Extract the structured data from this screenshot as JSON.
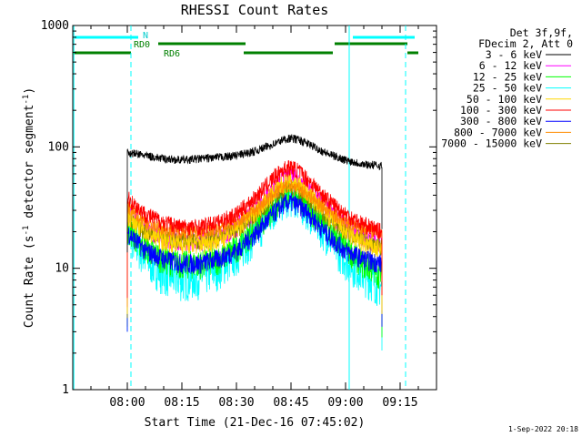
{
  "chart_data": {
    "type": "line",
    "title": "RHESSI Count Rates",
    "xlabel": "Start Time (21-Dec-16 07:45:02)",
    "ylabel": "Count Rate (s⁻¹ detector segment⁻¹)",
    "ylabel_main": "Count Rate (s",
    "ylabel_sup1": "-1",
    "ylabel_mid": " detector segment",
    "ylabel_sup2": "-1",
    "ylabel_end": ")",
    "yscale": "log",
    "ylim": [
      1,
      1000
    ],
    "xlim_minutes": [
      0,
      100
    ],
    "x_ticks": [
      "08:00",
      "08:15",
      "08:30",
      "08:45",
      "09:00",
      "09:15"
    ],
    "x_tick_minutes": [
      15,
      30,
      45,
      60,
      75,
      90
    ],
    "y_ticks": [
      "1",
      "10",
      "100",
      "1000"
    ],
    "y_tick_values": [
      1,
      10,
      100,
      1000
    ],
    "legend_header": [
      "Det 3f,9f,",
      "FDecim 2, Att 0"
    ],
    "legend_placement": "right",
    "series": [
      {
        "name": "3 - 6 keV",
        "color": "#000000",
        "x": [
          15,
          20,
          25,
          30,
          35,
          40,
          45,
          50,
          55,
          58,
          60,
          62,
          65,
          70,
          75,
          80,
          85
        ],
        "values": [
          90,
          85,
          80,
          78,
          80,
          82,
          85,
          92,
          105,
          115,
          118,
          115,
          105,
          88,
          78,
          72,
          70
        ]
      },
      {
        "name": "6 - 12 keV",
        "color": "#ff00ff",
        "x": [
          15,
          20,
          25,
          30,
          35,
          40,
          45,
          50,
          55,
          58,
          60,
          62,
          65,
          70,
          75,
          80,
          85
        ],
        "values": [
          30,
          22,
          18,
          17,
          17,
          18,
          22,
          30,
          45,
          55,
          57,
          54,
          45,
          30,
          22,
          18,
          15
        ]
      },
      {
        "name": "12 - 25 keV",
        "color": "#00ff00",
        "x": [
          15,
          20,
          25,
          30,
          35,
          40,
          45,
          50,
          55,
          58,
          60,
          62,
          65,
          70,
          75,
          80,
          85
        ],
        "values": [
          22,
          15,
          12,
          11,
          11,
          12,
          15,
          21,
          32,
          40,
          42,
          40,
          32,
          21,
          15,
          11,
          9
        ]
      },
      {
        "name": "25 - 50 keV",
        "color": "#00ffff",
        "x": [
          15,
          20,
          25,
          30,
          35,
          40,
          45,
          50,
          55,
          58,
          60,
          62,
          65,
          70,
          75,
          80,
          85
        ],
        "values": [
          20,
          12,
          9,
          8,
          8.5,
          10,
          13,
          19,
          30,
          38,
          40,
          37,
          30,
          19,
          12,
          9,
          7
        ]
      },
      {
        "name": "50 - 100 keV",
        "color": "#ffd700",
        "x": [
          15,
          20,
          25,
          30,
          35,
          40,
          45,
          50,
          55,
          58,
          60,
          62,
          65,
          70,
          75,
          80,
          85
        ],
        "values": [
          28,
          20,
          17,
          16,
          16,
          17,
          21,
          29,
          42,
          50,
          52,
          49,
          41,
          28,
          20,
          16,
          14
        ]
      },
      {
        "name": "100 - 300 keV",
        "color": "#ff0000",
        "x": [
          15,
          20,
          25,
          30,
          35,
          40,
          45,
          50,
          55,
          58,
          60,
          62,
          65,
          70,
          75,
          80,
          85
        ],
        "values": [
          38,
          28,
          24,
          22,
          22,
          24,
          28,
          38,
          55,
          66,
          68,
          64,
          53,
          37,
          28,
          23,
          20
        ]
      },
      {
        "name": "300 - 800 keV",
        "color": "#0000ff",
        "x": [
          15,
          20,
          25,
          30,
          35,
          40,
          45,
          50,
          55,
          58,
          60,
          62,
          65,
          70,
          75,
          80,
          85
        ],
        "values": [
          20,
          14,
          12,
          11,
          11,
          12,
          14,
          19,
          28,
          34,
          35,
          33,
          28,
          19,
          14,
          12,
          11
        ]
      },
      {
        "name": "800 - 7000 keV",
        "color": "#ff8c00",
        "x": [
          15,
          20,
          25,
          30,
          35,
          40,
          45,
          50,
          55,
          58,
          60,
          62,
          65,
          70,
          75,
          80,
          85
        ],
        "values": [
          32,
          24,
          21,
          20,
          20,
          21,
          24,
          30,
          40,
          47,
          48,
          46,
          40,
          30,
          24,
          21,
          20
        ]
      },
      {
        "name": "7000 - 15000 keV",
        "color": "#808000",
        "x": [
          15,
          20,
          25,
          30,
          35,
          40,
          45,
          50,
          55,
          58,
          60,
          62,
          65,
          70,
          75,
          80,
          85
        ],
        "values": [
          26,
          20,
          18,
          17,
          17,
          18,
          21,
          27,
          38,
          45,
          47,
          44,
          37,
          26,
          20,
          17,
          15
        ]
      }
    ],
    "annotations": {
      "N_label": "N",
      "RD0_label": "RD0",
      "RD6_label": "RD6"
    },
    "vertical_lines_minutes": {
      "solid": [
        0.3,
        76
      ],
      "dashed": [
        16,
        91.5
      ]
    },
    "footer": "1-Sep-2022 20:18",
    "colors": {
      "axis": "#000000",
      "flag_cyan": "#00ffff",
      "flag_green": "#008000"
    }
  }
}
